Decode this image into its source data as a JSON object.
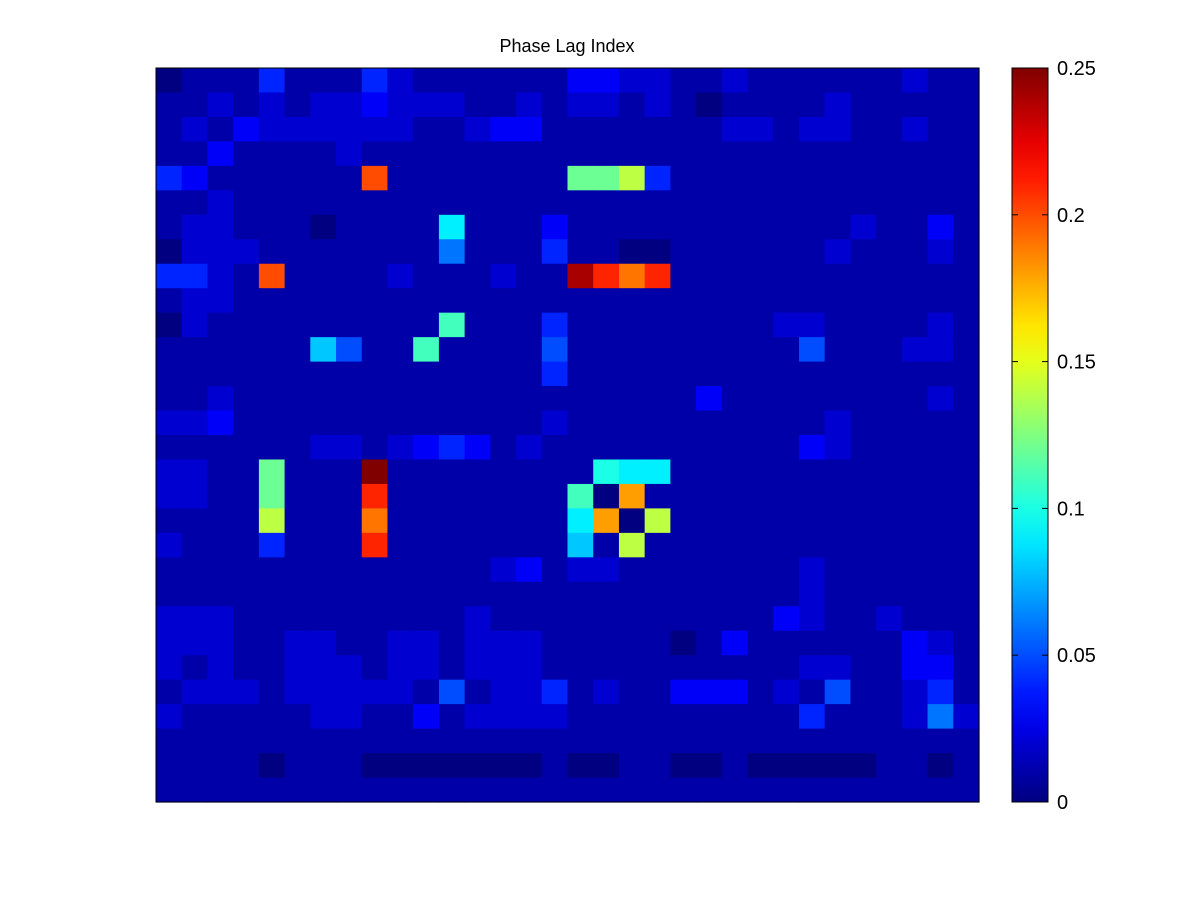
{
  "chart_data": {
    "type": "heatmap",
    "title": "Phase Lag Index",
    "xlabel": "",
    "ylabel": "",
    "colormap": "jet",
    "value_range": [
      0,
      0.25
    ],
    "colorbar": {
      "ticks": [
        0,
        0.05,
        0.1,
        0.15,
        0.2,
        0.25
      ],
      "tick_labels": [
        "0",
        "0.05",
        "0.1",
        "0.15",
        "0.2",
        "0.25"
      ]
    },
    "grid": false,
    "rows": 30,
    "cols": 32,
    "values": [
      [
        0.0,
        0.01,
        0.01,
        0.01,
        0.04,
        0.01,
        0.01,
        0.01,
        0.04,
        0.02,
        0.01,
        0.01,
        0.01,
        0.01,
        0.01,
        0.01,
        0.03,
        0.03,
        0.02,
        0.02,
        0.01,
        0.01,
        0.02,
        0.01,
        0.01,
        0.01,
        0.01,
        0.01,
        0.01,
        0.02,
        0.01,
        0.01
      ],
      [
        0.01,
        0.01,
        0.02,
        0.01,
        0.02,
        0.01,
        0.02,
        0.02,
        0.03,
        0.02,
        0.02,
        0.02,
        0.01,
        0.01,
        0.02,
        0.01,
        0.02,
        0.02,
        0.01,
        0.02,
        0.01,
        0.0,
        0.01,
        0.01,
        0.01,
        0.01,
        0.02,
        0.01,
        0.01,
        0.01,
        0.01,
        0.01
      ],
      [
        0.01,
        0.02,
        0.01,
        0.03,
        0.02,
        0.02,
        0.02,
        0.02,
        0.02,
        0.02,
        0.01,
        0.01,
        0.02,
        0.03,
        0.03,
        0.01,
        0.01,
        0.01,
        0.01,
        0.01,
        0.01,
        0.01,
        0.02,
        0.02,
        0.01,
        0.02,
        0.02,
        0.01,
        0.01,
        0.02,
        0.01,
        0.01
      ],
      [
        0.01,
        0.01,
        0.03,
        0.01,
        0.01,
        0.01,
        0.01,
        0.02,
        0.01,
        0.01,
        0.01,
        0.01,
        0.01,
        0.01,
        0.01,
        0.01,
        0.01,
        0.01,
        0.01,
        0.01,
        0.01,
        0.01,
        0.01,
        0.01,
        0.01,
        0.01,
        0.01,
        0.01,
        0.01,
        0.01,
        0.01,
        0.01
      ],
      [
        0.04,
        0.03,
        0.01,
        0.01,
        0.01,
        0.01,
        0.01,
        0.01,
        0.2,
        0.01,
        0.01,
        0.01,
        0.01,
        0.01,
        0.01,
        0.01,
        0.12,
        0.12,
        0.14,
        0.04,
        0.01,
        0.01,
        0.01,
        0.01,
        0.01,
        0.01,
        0.01,
        0.01,
        0.01,
        0.01,
        0.01,
        0.01
      ],
      [
        0.01,
        0.01,
        0.02,
        0.01,
        0.01,
        0.01,
        0.01,
        0.01,
        0.01,
        0.01,
        0.01,
        0.01,
        0.01,
        0.01,
        0.01,
        0.01,
        0.01,
        0.01,
        0.01,
        0.01,
        0.01,
        0.01,
        0.01,
        0.01,
        0.01,
        0.01,
        0.01,
        0.01,
        0.01,
        0.01,
        0.01,
        0.01
      ],
      [
        0.01,
        0.02,
        0.02,
        0.01,
        0.01,
        0.01,
        0.0,
        0.01,
        0.01,
        0.01,
        0.01,
        0.09,
        0.01,
        0.01,
        0.01,
        0.03,
        0.01,
        0.01,
        0.01,
        0.01,
        0.01,
        0.01,
        0.01,
        0.01,
        0.01,
        0.01,
        0.01,
        0.02,
        0.01,
        0.01,
        0.03,
        0.01
      ],
      [
        0.0,
        0.02,
        0.02,
        0.02,
        0.01,
        0.01,
        0.01,
        0.01,
        0.01,
        0.01,
        0.01,
        0.06,
        0.01,
        0.01,
        0.01,
        0.04,
        0.01,
        0.01,
        0.0,
        0.0,
        0.01,
        0.01,
        0.01,
        0.01,
        0.01,
        0.01,
        0.02,
        0.01,
        0.01,
        0.01,
        0.02,
        0.01
      ],
      [
        0.04,
        0.04,
        0.02,
        0.01,
        0.2,
        0.01,
        0.01,
        0.01,
        0.01,
        0.02,
        0.01,
        0.01,
        0.01,
        0.02,
        0.01,
        0.01,
        0.24,
        0.21,
        0.19,
        0.21,
        0.01,
        0.01,
        0.01,
        0.01,
        0.01,
        0.01,
        0.01,
        0.01,
        0.01,
        0.01,
        0.01,
        0.01
      ],
      [
        0.01,
        0.02,
        0.02,
        0.01,
        0.01,
        0.01,
        0.01,
        0.01,
        0.01,
        0.01,
        0.01,
        0.01,
        0.01,
        0.01,
        0.01,
        0.01,
        0.01,
        0.01,
        0.01,
        0.01,
        0.01,
        0.01,
        0.01,
        0.01,
        0.01,
        0.01,
        0.01,
        0.01,
        0.01,
        0.01,
        0.01,
        0.01
      ],
      [
        0.0,
        0.02,
        0.01,
        0.01,
        0.01,
        0.01,
        0.01,
        0.01,
        0.01,
        0.01,
        0.01,
        0.11,
        0.01,
        0.01,
        0.01,
        0.04,
        0.01,
        0.01,
        0.01,
        0.01,
        0.01,
        0.01,
        0.01,
        0.01,
        0.02,
        0.02,
        0.01,
        0.01,
        0.01,
        0.01,
        0.02,
        0.01
      ],
      [
        0.01,
        0.01,
        0.01,
        0.01,
        0.01,
        0.01,
        0.08,
        0.05,
        0.01,
        0.01,
        0.11,
        0.01,
        0.01,
        0.01,
        0.01,
        0.05,
        0.01,
        0.01,
        0.01,
        0.01,
        0.01,
        0.01,
        0.01,
        0.01,
        0.01,
        0.05,
        0.01,
        0.01,
        0.01,
        0.02,
        0.02,
        0.01
      ],
      [
        0.01,
        0.01,
        0.01,
        0.01,
        0.01,
        0.01,
        0.01,
        0.01,
        0.01,
        0.01,
        0.01,
        0.01,
        0.01,
        0.01,
        0.01,
        0.04,
        0.01,
        0.01,
        0.01,
        0.01,
        0.01,
        0.01,
        0.01,
        0.01,
        0.01,
        0.01,
        0.01,
        0.01,
        0.01,
        0.01,
        0.01,
        0.01
      ],
      [
        0.01,
        0.01,
        0.02,
        0.01,
        0.01,
        0.01,
        0.01,
        0.01,
        0.01,
        0.01,
        0.01,
        0.01,
        0.01,
        0.01,
        0.01,
        0.01,
        0.01,
        0.01,
        0.01,
        0.01,
        0.01,
        0.03,
        0.01,
        0.01,
        0.01,
        0.01,
        0.01,
        0.01,
        0.01,
        0.01,
        0.02,
        0.01
      ],
      [
        0.02,
        0.02,
        0.03,
        0.01,
        0.01,
        0.01,
        0.01,
        0.01,
        0.01,
        0.01,
        0.01,
        0.01,
        0.01,
        0.01,
        0.01,
        0.02,
        0.01,
        0.01,
        0.01,
        0.01,
        0.01,
        0.01,
        0.01,
        0.01,
        0.01,
        0.01,
        0.02,
        0.01,
        0.01,
        0.01,
        0.01,
        0.01
      ],
      [
        0.01,
        0.01,
        0.01,
        0.01,
        0.01,
        0.01,
        0.02,
        0.02,
        0.01,
        0.02,
        0.03,
        0.04,
        0.03,
        0.01,
        0.02,
        0.01,
        0.01,
        0.01,
        0.01,
        0.01,
        0.01,
        0.01,
        0.01,
        0.01,
        0.01,
        0.03,
        0.02,
        0.01,
        0.01,
        0.01,
        0.01,
        0.01
      ],
      [
        0.02,
        0.02,
        0.01,
        0.01,
        0.12,
        0.01,
        0.01,
        0.01,
        0.25,
        0.01,
        0.01,
        0.01,
        0.01,
        0.01,
        0.01,
        0.01,
        0.01,
        0.1,
        0.09,
        0.09,
        0.01,
        0.01,
        0.01,
        0.01,
        0.01,
        0.01,
        0.01,
        0.01,
        0.01,
        0.01,
        0.01,
        0.01
      ],
      [
        0.02,
        0.02,
        0.01,
        0.01,
        0.12,
        0.01,
        0.01,
        0.01,
        0.21,
        0.01,
        0.01,
        0.01,
        0.01,
        0.01,
        0.01,
        0.01,
        0.11,
        0.0,
        0.18,
        0.01,
        0.01,
        0.01,
        0.01,
        0.01,
        0.01,
        0.01,
        0.01,
        0.01,
        0.01,
        0.01,
        0.01,
        0.01
      ],
      [
        0.01,
        0.01,
        0.01,
        0.01,
        0.14,
        0.01,
        0.01,
        0.01,
        0.19,
        0.01,
        0.01,
        0.01,
        0.01,
        0.01,
        0.01,
        0.01,
        0.09,
        0.18,
        0.0,
        0.14,
        0.01,
        0.01,
        0.01,
        0.01,
        0.01,
        0.01,
        0.01,
        0.01,
        0.01,
        0.01,
        0.01,
        0.01
      ],
      [
        0.02,
        0.01,
        0.01,
        0.01,
        0.04,
        0.01,
        0.01,
        0.01,
        0.21,
        0.01,
        0.01,
        0.01,
        0.01,
        0.01,
        0.01,
        0.01,
        0.08,
        0.01,
        0.14,
        0.01,
        0.01,
        0.01,
        0.01,
        0.01,
        0.01,
        0.01,
        0.01,
        0.01,
        0.01,
        0.01,
        0.01,
        0.01
      ],
      [
        0.01,
        0.01,
        0.01,
        0.01,
        0.01,
        0.01,
        0.01,
        0.01,
        0.01,
        0.01,
        0.01,
        0.01,
        0.01,
        0.02,
        0.03,
        0.01,
        0.02,
        0.02,
        0.01,
        0.01,
        0.01,
        0.01,
        0.01,
        0.01,
        0.01,
        0.02,
        0.01,
        0.01,
        0.01,
        0.01,
        0.01,
        0.01
      ],
      [
        0.01,
        0.01,
        0.01,
        0.01,
        0.01,
        0.01,
        0.01,
        0.01,
        0.01,
        0.01,
        0.01,
        0.01,
        0.01,
        0.01,
        0.01,
        0.01,
        0.01,
        0.01,
        0.01,
        0.01,
        0.01,
        0.01,
        0.01,
        0.01,
        0.01,
        0.02,
        0.01,
        0.01,
        0.01,
        0.01,
        0.01,
        0.01
      ],
      [
        0.02,
        0.02,
        0.02,
        0.01,
        0.01,
        0.01,
        0.01,
        0.01,
        0.01,
        0.01,
        0.01,
        0.01,
        0.02,
        0.01,
        0.01,
        0.01,
        0.01,
        0.01,
        0.01,
        0.01,
        0.01,
        0.01,
        0.01,
        0.01,
        0.03,
        0.02,
        0.01,
        0.01,
        0.02,
        0.01,
        0.01,
        0.01
      ],
      [
        0.02,
        0.02,
        0.02,
        0.01,
        0.01,
        0.02,
        0.02,
        0.01,
        0.01,
        0.02,
        0.02,
        0.01,
        0.02,
        0.02,
        0.02,
        0.01,
        0.01,
        0.01,
        0.01,
        0.01,
        0.0,
        0.01,
        0.03,
        0.01,
        0.01,
        0.01,
        0.01,
        0.01,
        0.01,
        0.03,
        0.02,
        0.01
      ],
      [
        0.02,
        0.01,
        0.02,
        0.01,
        0.01,
        0.02,
        0.02,
        0.02,
        0.01,
        0.02,
        0.02,
        0.01,
        0.02,
        0.02,
        0.02,
        0.01,
        0.01,
        0.01,
        0.01,
        0.01,
        0.01,
        0.01,
        0.01,
        0.01,
        0.01,
        0.02,
        0.02,
        0.01,
        0.01,
        0.03,
        0.03,
        0.01
      ],
      [
        0.01,
        0.02,
        0.02,
        0.02,
        0.01,
        0.02,
        0.02,
        0.02,
        0.02,
        0.02,
        0.01,
        0.05,
        0.01,
        0.02,
        0.02,
        0.04,
        0.01,
        0.02,
        0.01,
        0.01,
        0.03,
        0.03,
        0.03,
        0.01,
        0.02,
        0.01,
        0.05,
        0.01,
        0.01,
        0.02,
        0.04,
        0.01
      ],
      [
        0.02,
        0.01,
        0.01,
        0.01,
        0.01,
        0.01,
        0.02,
        0.02,
        0.01,
        0.01,
        0.03,
        0.01,
        0.02,
        0.02,
        0.02,
        0.02,
        0.01,
        0.01,
        0.01,
        0.01,
        0.01,
        0.01,
        0.01,
        0.01,
        0.01,
        0.04,
        0.01,
        0.01,
        0.01,
        0.02,
        0.06,
        0.02
      ],
      [
        0.01,
        0.01,
        0.01,
        0.01,
        0.01,
        0.01,
        0.01,
        0.01,
        0.01,
        0.01,
        0.01,
        0.01,
        0.01,
        0.01,
        0.01,
        0.01,
        0.01,
        0.01,
        0.01,
        0.01,
        0.01,
        0.01,
        0.01,
        0.01,
        0.01,
        0.01,
        0.01,
        0.01,
        0.01,
        0.01,
        0.01,
        0.01
      ],
      [
        0.01,
        0.01,
        0.01,
        0.01,
        0.0,
        0.01,
        0.01,
        0.01,
        0.0,
        0.0,
        0.0,
        0.0,
        0.0,
        0.0,
        0.0,
        0.01,
        0.0,
        0.0,
        0.01,
        0.01,
        0.0,
        0.0,
        0.01,
        0.0,
        0.0,
        0.0,
        0.0,
        0.0,
        0.01,
        0.01,
        0.0,
        0.01
      ],
      [
        0.01,
        0.01,
        0.01,
        0.01,
        0.01,
        0.01,
        0.01,
        0.01,
        0.01,
        0.01,
        0.01,
        0.01,
        0.01,
        0.01,
        0.01,
        0.01,
        0.01,
        0.01,
        0.01,
        0.01,
        0.01,
        0.01,
        0.01,
        0.01,
        0.01,
        0.01,
        0.01,
        0.01,
        0.01,
        0.01,
        0.01,
        0.01
      ]
    ]
  }
}
